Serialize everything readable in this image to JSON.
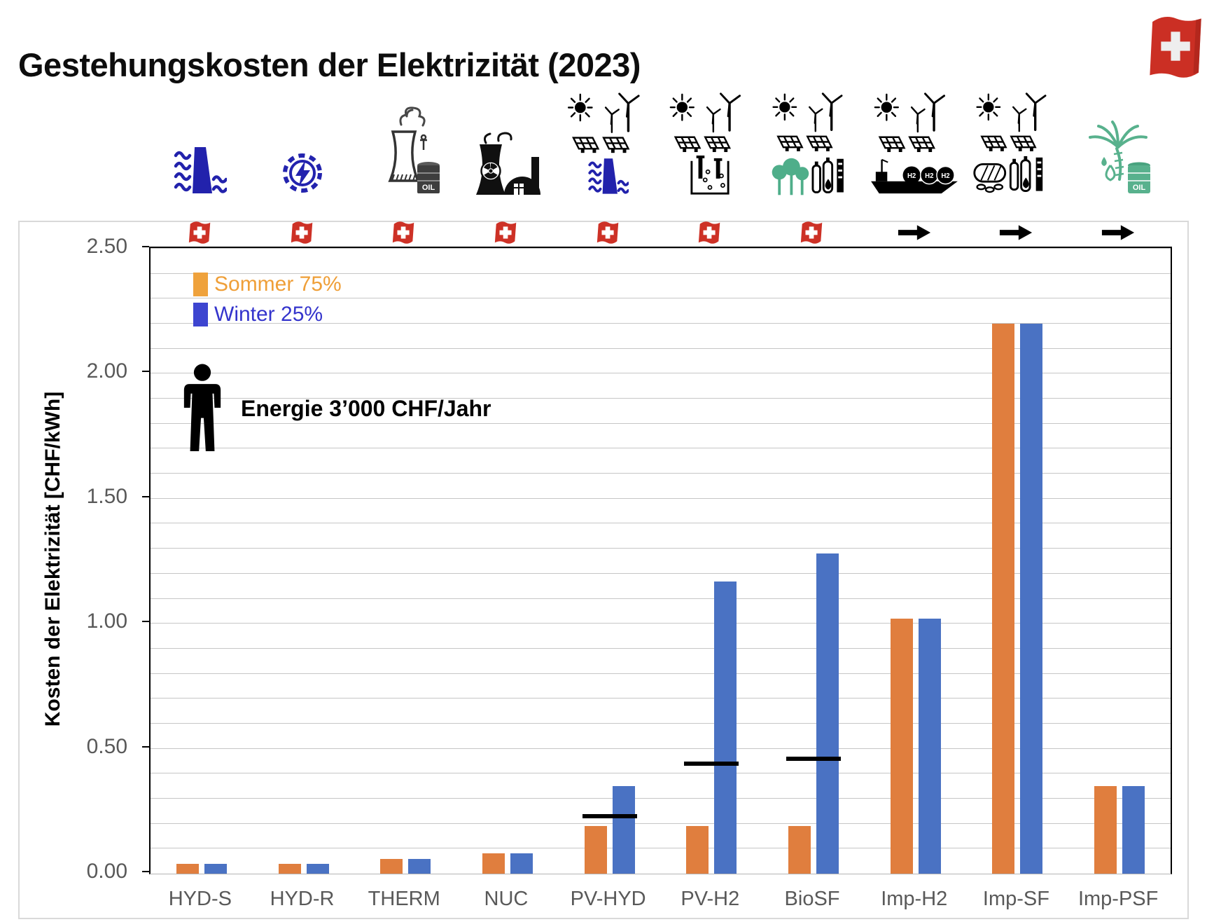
{
  "page": {
    "title": "Gestehungskosten der Elektrizität (2023)"
  },
  "header": {
    "flag_icon": "swiss-flag-icon"
  },
  "legend": {
    "items": [
      {
        "label": "Sommer 75%",
        "swatch_color": "#efa23c",
        "text_color": "#ef9f38"
      },
      {
        "label": "Winter 25%",
        "swatch_color": "#3d45d0",
        "text_color": "#3434cc"
      }
    ]
  },
  "annotation": {
    "icon": "person-icon",
    "label": "Energie 3’000 CHF/Jahr"
  },
  "axis": {
    "y_title": "Kosten der Elektrizität [CHF/kWh]",
    "y_tick_labels": [
      "0.00",
      "0.50",
      "1.00",
      "1.50",
      "2.00",
      "2.50"
    ],
    "y_major_step": 0.5,
    "y_minor_step": 0.1,
    "y_max": 2.5
  },
  "chart_data": {
    "type": "bar",
    "title": "Gestehungskosten der Elektrizität (2023)",
    "xlabel": "",
    "ylabel": "Kosten der Elektrizität [CHF/kWh]",
    "ylim": [
      0,
      2.5
    ],
    "grid": "horizontal, minor every 0.10",
    "legend_position": "inside top-left",
    "categories": [
      "HYD-S",
      "HYD-R",
      "THERM",
      "NUC",
      "PV-HYD",
      "PV-H2",
      "BioSF",
      "Imp-H2",
      "Imp-SF",
      "Imp-PSF"
    ],
    "series": [
      {
        "name": "Sommer 75%",
        "color": "#e07e3e",
        "values": [
          0.04,
          0.04,
          0.06,
          0.08,
          0.19,
          0.19,
          0.19,
          1.02,
          2.2,
          0.35
        ]
      },
      {
        "name": "Winter 25%",
        "color": "#4a72c3",
        "values": [
          0.04,
          0.04,
          0.06,
          0.08,
          0.35,
          1.17,
          1.28,
          1.02,
          2.2,
          0.35
        ]
      }
    ],
    "reference_markers": [
      {
        "category": "PV-HYD",
        "value": 0.23
      },
      {
        "category": "PV-H2",
        "value": 0.44
      },
      {
        "category": "BioSF",
        "value": 0.46
      }
    ],
    "origin_markers": [
      "swiss-flag-icon",
      "swiss-flag-icon",
      "swiss-flag-icon",
      "swiss-flag-icon",
      "swiss-flag-icon",
      "swiss-flag-icon",
      "swiss-flag-icon",
      "import-arrow-icon",
      "import-arrow-icon",
      "import-arrow-icon"
    ]
  },
  "icons": {
    "columns": [
      [
        "hydro-dam-icon"
      ],
      [
        "hydro-turbine-icon"
      ],
      [
        "thermal-plant-icon"
      ],
      [
        "nuclear-plant-icon"
      ],
      [
        "solar-wind-icon",
        "hydro-dam-small-icon"
      ],
      [
        "solar-wind-icon",
        "electrolyzer-icon"
      ],
      [
        "solar-wind-icon",
        "bio-synfuel-icon"
      ],
      [
        "solar-wind-icon",
        "h2-ship-icon"
      ],
      [
        "solar-wind-icon",
        "synfuel-plant-icon"
      ],
      [
        "palm-oil-icon"
      ]
    ],
    "oil_label": "OIL",
    "h2_label": "H2"
  }
}
